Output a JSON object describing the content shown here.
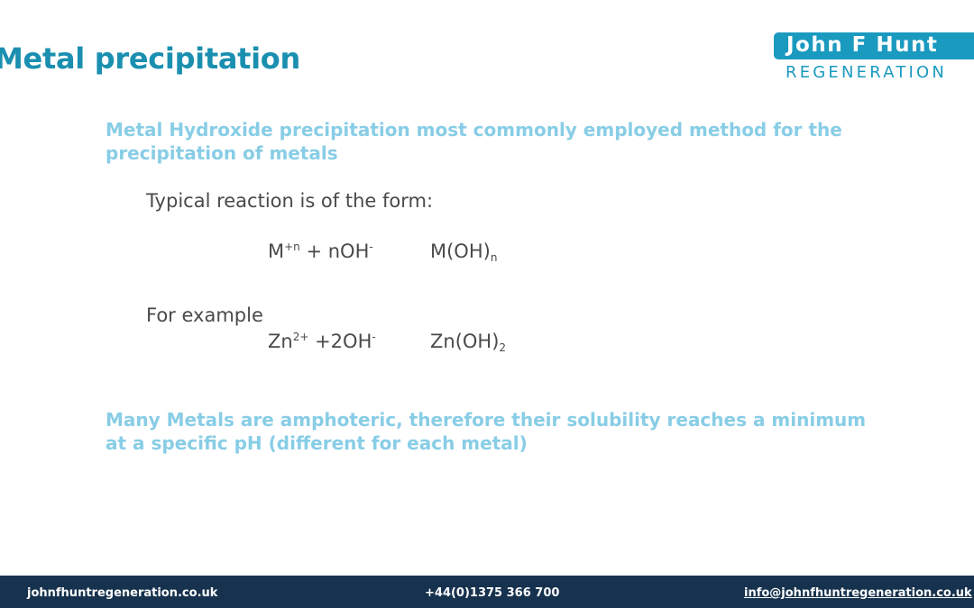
{
  "slide": {
    "title": "Metal precipitation"
  },
  "logo": {
    "name": "John F Hunt",
    "sub": "REGENERATION"
  },
  "content": {
    "heading_1_line1": "Metal Hydroxide precipitation most commonly employed method for the",
    "heading_1_line2": "precipitation of metals",
    "typical_reaction": "Typical reaction is of the form:",
    "general_reactant": {
      "base": "M",
      "sup": "+n",
      "rest": " + nOH",
      "sup2": "-"
    },
    "general_product": {
      "base": "M(OH)",
      "sub": "n"
    },
    "example_label": "For example",
    "example_reactant": {
      "base": "Zn",
      "sup": "2+",
      "rest": " +2OH",
      "sup2": "-"
    },
    "example_product": {
      "base": "Zn(OH)",
      "sub": "2"
    },
    "heading_2_line1": "Many Metals are amphoteric, therefore their solubility reaches a minimum",
    "heading_2_line2": "at a specific pH (different for each metal)"
  },
  "footer": {
    "website": "johnfhuntregeneration.co.uk",
    "phone": "+44(0)1375 366 700",
    "email": "info@johnfhuntregeneration.co.uk"
  },
  "colors": {
    "title": "#1a8fb0",
    "heading": "#88cde6",
    "footer_bg": "#17324e",
    "logo_blue": "#1b9ac0"
  }
}
